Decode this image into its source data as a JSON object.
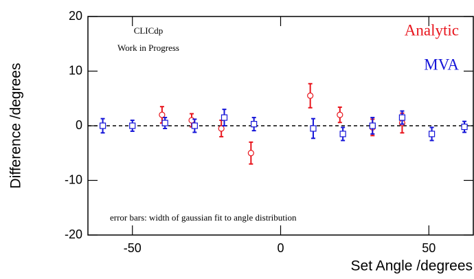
{
  "chart_data": {
    "type": "scatter",
    "annotations": [
      "CLICdp",
      "Work in Progress",
      "error bars: width of gaussian fit to angle distribution"
    ],
    "xlabel": "Set Angle /degrees",
    "ylabel": "Difference /degrees",
    "xlim": [
      -65,
      65
    ],
    "xticks": [
      -50,
      0,
      50
    ],
    "ylim": [
      -20,
      20
    ],
    "yticks": [
      -20,
      -10,
      0,
      10,
      20
    ],
    "hline": 0,
    "series": [
      {
        "name": "Analytic",
        "color": "#e8141c",
        "marker": "circle",
        "x": [
          -40,
          -30,
          -20,
          -10,
          10,
          20,
          31,
          41
        ],
        "values": [
          2,
          1,
          -0.5,
          -5,
          5.5,
          2,
          -0.3,
          0.5
        ],
        "errors": [
          1.5,
          1.2,
          1.5,
          2,
          2.2,
          1.4,
          1.5,
          1.8
        ]
      },
      {
        "name": "MVA",
        "color": "#1414d8",
        "marker": "square",
        "x": [
          -60,
          -50,
          -39,
          -29,
          -19,
          -9,
          11,
          21,
          31,
          41,
          51,
          62
        ],
        "values": [
          0,
          0,
          0.5,
          0,
          1.5,
          0.3,
          -0.5,
          -1.5,
          0,
          1.5,
          -1.5,
          -0.2
        ],
        "errors": [
          1.3,
          1,
          1,
          1.2,
          1.5,
          1.2,
          1.8,
          1.2,
          1.5,
          1.2,
          1.2,
          1
        ]
      }
    ]
  }
}
